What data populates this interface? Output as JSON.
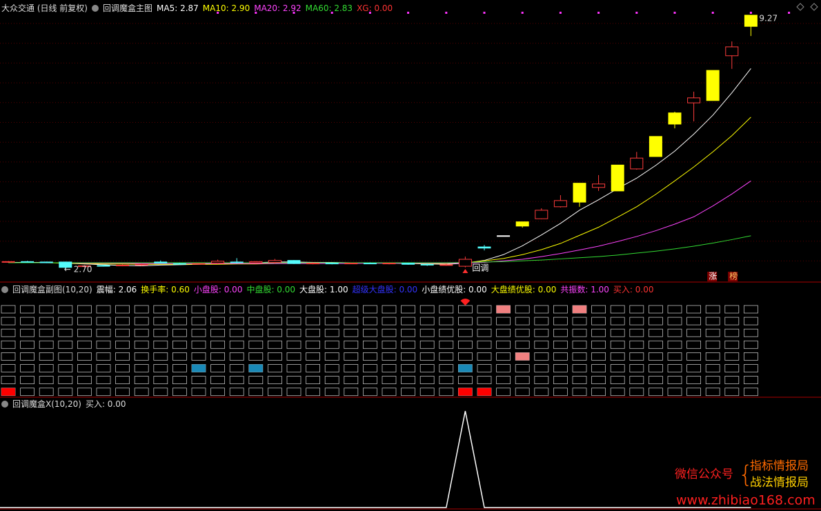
{
  "chart_data": [
    {
      "type": "candlestick",
      "title": "大众交通 (日线 前复权)",
      "indicator": "回调魔盒主图",
      "open": [
        2.88,
        2.89,
        2.88,
        2.88,
        2.76,
        2.79,
        2.78,
        2.8,
        2.88,
        2.84,
        2.83,
        2.85,
        2.88,
        2.86,
        2.87,
        2.92,
        2.84,
        2.85,
        2.84,
        2.85,
        2.84,
        2.85,
        2.82,
        2.8,
        2.77,
        3.27,
        3.56,
        3.81,
        4.0,
        4.31,
        4.43,
        4.81,
        4.72,
        5.29,
        5.61,
        6.45,
        7.0,
        7.06,
        8.22,
        8.98
      ],
      "high": [
        2.9,
        2.91,
        2.89,
        2.89,
        2.8,
        2.81,
        2.82,
        2.84,
        2.92,
        2.86,
        2.85,
        2.94,
        2.98,
        2.9,
        2.96,
        2.93,
        2.87,
        2.86,
        2.86,
        2.87,
        2.86,
        2.86,
        2.84,
        2.83,
        3.02,
        3.32,
        3.56,
        3.92,
        4.27,
        4.61,
        4.92,
        5.13,
        5.39,
        5.73,
        6.13,
        6.77,
        7.29,
        7.84,
        8.59,
        9.27
      ],
      "low": [
        2.86,
        2.87,
        2.85,
        2.7,
        2.74,
        2.76,
        2.77,
        2.78,
        2.84,
        2.81,
        2.81,
        2.83,
        2.84,
        2.84,
        2.84,
        2.83,
        2.82,
        2.82,
        2.83,
        2.83,
        2.82,
        2.81,
        2.78,
        2.78,
        2.74,
        3.18,
        3.56,
        3.77,
        3.99,
        4.29,
        4.31,
        4.72,
        4.72,
        5.27,
        5.61,
        6.34,
        6.52,
        7.06,
        7.88,
        8.73
      ],
      "close": [
        2.89,
        2.88,
        2.86,
        2.74,
        2.78,
        2.77,
        2.8,
        2.82,
        2.85,
        2.83,
        2.84,
        2.9,
        2.86,
        2.89,
        2.92,
        2.84,
        2.85,
        2.84,
        2.85,
        2.84,
        2.85,
        2.82,
        2.8,
        2.81,
        2.95,
        3.24,
        3.56,
        3.92,
        4.22,
        4.47,
        4.92,
        4.9,
        5.39,
        5.57,
        6.13,
        6.74,
        7.13,
        7.84,
        8.45,
        9.27
      ],
      "candle_colors": [
        "#ff3c3c",
        "#54fcfc",
        "#54fcfc",
        "#54fcfc",
        "#ff3c3c",
        "#54fcfc",
        "#ff3c3c",
        "#ff3c3c",
        "#54fcfc",
        "#54fcfc",
        "#ff3c3c",
        "#ff3c3c",
        "#54fcfc",
        "#ff3c3c",
        "#ff3c3c",
        "#54fcfc",
        "#ff3c3c",
        "#54fcfc",
        "#ff3c3c",
        "#54fcfc",
        "#ff3c3c",
        "#54fcfc",
        "#54fcfc",
        "#ff3c3c",
        "#ff3c3c",
        "#54fcfc",
        "#ffffff",
        "#ffff00",
        "#ff3c3c",
        "#ff3c3c",
        "#ffff00",
        "#ff3c3c",
        "#ffff00",
        "#ff3c3c",
        "#ffff00",
        "#ffff00",
        "#ff3c3c",
        "#ffff00",
        "#ff3c3c",
        "#ffff00"
      ],
      "hollow_color": "#ff3c3c",
      "series": [
        {
          "name": "MA5: 2.87",
          "color": "#ffffff",
          "values": [
            2.87,
            2.87,
            2.87,
            2.85,
            2.83,
            2.81,
            2.79,
            2.78,
            2.8,
            2.81,
            2.82,
            2.85,
            2.86,
            2.86,
            2.88,
            2.88,
            2.87,
            2.87,
            2.86,
            2.85,
            2.85,
            2.84,
            2.83,
            2.82,
            2.85,
            2.92,
            3.07,
            3.3,
            3.58,
            3.88,
            4.22,
            4.49,
            4.78,
            5.05,
            5.38,
            5.75,
            6.19,
            6.68,
            7.26,
            7.89
          ]
        },
        {
          "name": "MA10: 2.90",
          "color": "#ffff00",
          "values": [
            2.86,
            2.86,
            2.86,
            2.85,
            2.84,
            2.83,
            2.83,
            2.82,
            2.82,
            2.82,
            2.82,
            2.82,
            2.83,
            2.83,
            2.84,
            2.85,
            2.86,
            2.86,
            2.86,
            2.86,
            2.86,
            2.85,
            2.84,
            2.84,
            2.86,
            2.91,
            2.97,
            3.07,
            3.2,
            3.36,
            3.57,
            3.78,
            4.04,
            4.31,
            4.63,
            4.98,
            5.34,
            5.73,
            6.15,
            6.63
          ]
        },
        {
          "name": "MA20: 2.92",
          "color": "#ff44ff",
          "values": [
            2.86,
            2.86,
            2.86,
            2.86,
            2.85,
            2.85,
            2.85,
            2.84,
            2.84,
            2.84,
            2.84,
            2.84,
            2.84,
            2.84,
            2.84,
            2.84,
            2.84,
            2.84,
            2.84,
            2.85,
            2.85,
            2.85,
            2.85,
            2.85,
            2.85,
            2.87,
            2.91,
            2.95,
            3.02,
            3.1,
            3.19,
            3.29,
            3.41,
            3.54,
            3.69,
            3.86,
            4.05,
            4.33,
            4.64,
            4.98
          ]
        },
        {
          "name": "MA60: 2.83",
          "color": "#33dd33",
          "values": [
            2.86,
            2.86,
            2.86,
            2.86,
            2.86,
            2.86,
            2.86,
            2.86,
            2.86,
            2.86,
            2.86,
            2.86,
            2.86,
            2.86,
            2.86,
            2.86,
            2.86,
            2.86,
            2.86,
            2.86,
            2.86,
            2.86,
            2.86,
            2.86,
            2.87,
            2.88,
            2.89,
            2.91,
            2.93,
            2.96,
            2.99,
            3.02,
            3.06,
            3.11,
            3.16,
            3.22,
            3.29,
            3.37,
            3.46,
            3.56
          ]
        }
      ],
      "extra_legend": {
        "text": "XG: 0.00",
        "color": "#ff3333"
      },
      "high_label": "9.27",
      "low_label": "2.70",
      "signal_label": "回调",
      "badges": [
        "涨",
        "榜"
      ]
    },
    {
      "type": "line",
      "title": "回调魔盒X(10,20)",
      "series": [
        {
          "name": "买入: 0.00",
          "color": "#ffffff",
          "values": [
            0,
            0,
            0,
            0,
            0,
            0,
            0,
            0,
            0,
            0,
            0,
            0,
            0,
            0,
            0,
            0,
            0,
            0,
            0,
            0,
            0,
            0,
            0,
            0,
            1,
            0,
            0,
            0,
            0,
            0,
            0,
            0,
            0,
            0,
            0,
            0,
            0,
            0,
            0,
            0
          ]
        }
      ]
    }
  ],
  "signal_panel": {
    "title": "回调魔盒副图(10,20)",
    "legend": [
      {
        "text": "震幅: 2.06",
        "color": "#ffffff"
      },
      {
        "text": "换手率: 0.60",
        "color": "#ffff00"
      },
      {
        "text": "小盘股: 0.00",
        "color": "#ff44ff"
      },
      {
        "text": "中盘股: 0.00",
        "color": "#33dd33"
      },
      {
        "text": "大盘股: 1.00",
        "color": "#ffffff"
      },
      {
        "text": "超级大盘股: 0.00",
        "color": "#3333ff"
      },
      {
        "text": "小盘绩优股: 0.00",
        "color": "#ffffff"
      },
      {
        "text": "大盘绩优股: 0.00",
        "color": "#ffff00"
      },
      {
        "text": "共振数: 1.00",
        "color": "#ff44ff"
      },
      {
        "text": "买入: 0.00",
        "color": "#ff3333"
      }
    ],
    "rows": 8,
    "columns": 40,
    "highlights": [
      {
        "row": 0,
        "column": 26,
        "color": "#f08080"
      },
      {
        "row": 0,
        "column": 30,
        "color": "#f08080"
      },
      {
        "row": 4,
        "column": 27,
        "color": "#f08080"
      },
      {
        "row": 5,
        "column": 10,
        "color": "#1a8ab8"
      },
      {
        "row": 5,
        "column": 13,
        "color": "#1a8ab8"
      },
      {
        "row": 5,
        "column": 24,
        "color": "#1a8ab8"
      },
      {
        "row": 7,
        "column": 0,
        "color": "#ff0000"
      },
      {
        "row": 7,
        "column": 24,
        "color": "#ff0000"
      },
      {
        "row": 7,
        "column": 25,
        "color": "#ff0000"
      }
    ]
  },
  "watermark": {
    "account_label": "微信公众号",
    "name_1": "指标情报局",
    "name_2": "战法情报局",
    "url": "www.zhibiao168.com"
  }
}
